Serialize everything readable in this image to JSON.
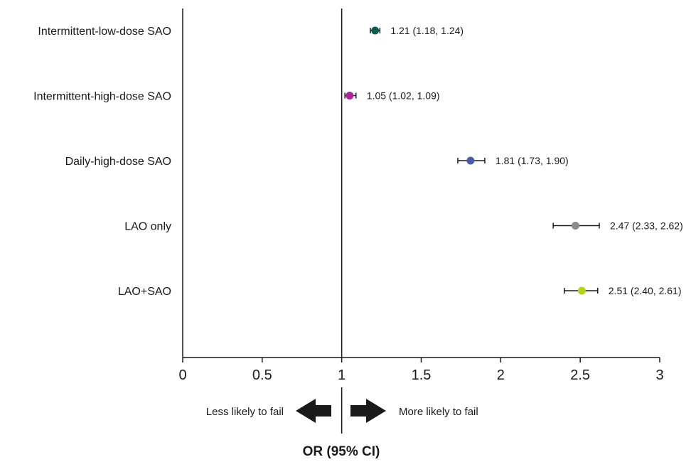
{
  "chart_data": {
    "type": "scatter",
    "subtype": "forest-plot",
    "xlabel": "OR (95% CI)",
    "xlim": [
      0,
      3
    ],
    "xticks": [
      0,
      0.5,
      1,
      1.5,
      2,
      2.5,
      3
    ],
    "xtick_labels": [
      "0",
      "0.5",
      "1",
      "1.5",
      "2",
      "2.5",
      "3"
    ],
    "reference_line": 1,
    "direction_labels": {
      "left": "Less likely to fail",
      "right": "More likely to fail"
    },
    "grid": false,
    "rows": [
      {
        "category": "Intermittent-low-dose SAO",
        "or": 1.21,
        "ci": [
          1.18,
          1.24
        ],
        "label": "1.21 (1.18, 1.24)",
        "color": "#0b5e4e"
      },
      {
        "category": "Intermittent-high-dose SAO",
        "or": 1.05,
        "ci": [
          1.02,
          1.09
        ],
        "label": "1.05 (1.02, 1.09)",
        "color": "#b0259e"
      },
      {
        "category": "Daily-high-dose SAO",
        "or": 1.81,
        "ci": [
          1.73,
          1.9
        ],
        "label": "1.81 (1.73, 1.90)",
        "color": "#4a5aa8"
      },
      {
        "category": "LAO only",
        "or": 2.47,
        "ci": [
          2.33,
          2.62
        ],
        "label": "2.47 (2.33, 2.62)",
        "color": "#8c8c8c"
      },
      {
        "category": "LAO+SAO",
        "or": 2.51,
        "ci": [
          2.4,
          2.61
        ],
        "label": "2.51 (2.40, 2.61)",
        "color": "#b4d416"
      }
    ]
  }
}
